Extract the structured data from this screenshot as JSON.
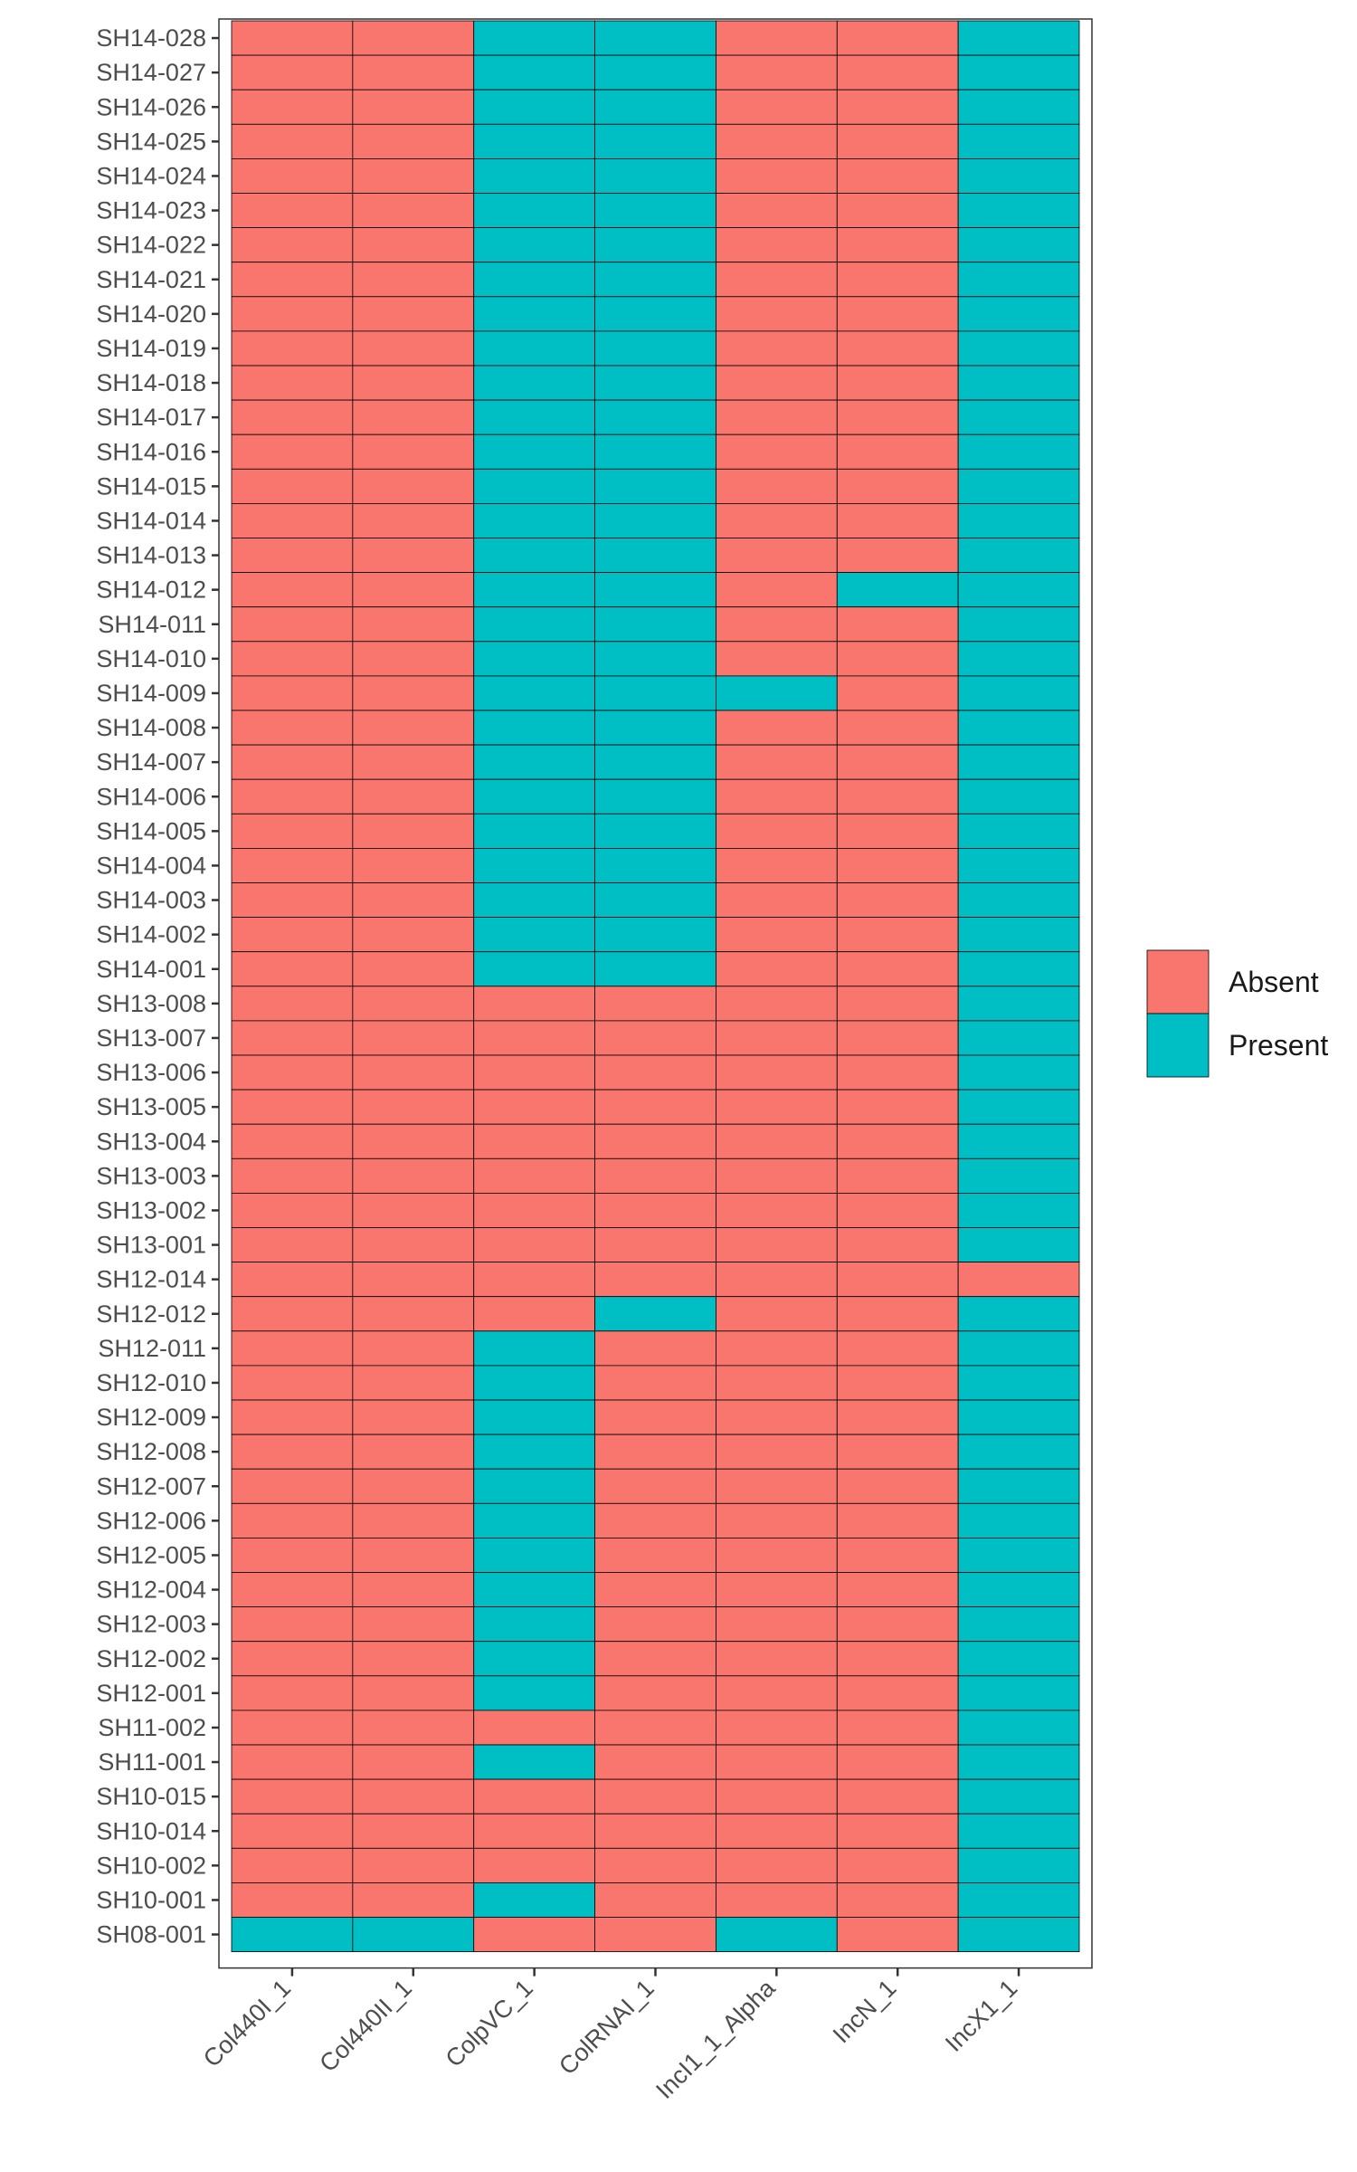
{
  "chart_data": {
    "type": "heatmap",
    "title": "",
    "xlabel": "",
    "ylabel": "",
    "x": [
      "Col440I_1",
      "Col440II_1",
      "ColpVC_1",
      "ColRNAI_1",
      "IncI1_1_Alpha",
      "IncN_1",
      "IncX1_1"
    ],
    "y": [
      "SH14-028",
      "SH14-027",
      "SH14-026",
      "SH14-025",
      "SH14-024",
      "SH14-023",
      "SH14-022",
      "SH14-021",
      "SH14-020",
      "SH14-019",
      "SH14-018",
      "SH14-017",
      "SH14-016",
      "SH14-015",
      "SH14-014",
      "SH14-013",
      "SH14-012",
      "SH14-011",
      "SH14-010",
      "SH14-009",
      "SH14-008",
      "SH14-007",
      "SH14-006",
      "SH14-005",
      "SH14-004",
      "SH14-003",
      "SH14-002",
      "SH14-001",
      "SH13-008",
      "SH13-007",
      "SH13-006",
      "SH13-005",
      "SH13-004",
      "SH13-003",
      "SH13-002",
      "SH13-001",
      "SH12-014",
      "SH12-012",
      "SH12-011",
      "SH12-010",
      "SH12-009",
      "SH12-008",
      "SH12-007",
      "SH12-006",
      "SH12-005",
      "SH12-004",
      "SH12-003",
      "SH12-002",
      "SH12-001",
      "SH11-002",
      "SH11-001",
      "SH10-015",
      "SH10-014",
      "SH10-002",
      "SH10-001",
      "SH08-001"
    ],
    "values": [
      [
        0,
        0,
        1,
        1,
        0,
        0,
        1
      ],
      [
        0,
        0,
        1,
        1,
        0,
        0,
        1
      ],
      [
        0,
        0,
        1,
        1,
        0,
        0,
        1
      ],
      [
        0,
        0,
        1,
        1,
        0,
        0,
        1
      ],
      [
        0,
        0,
        1,
        1,
        0,
        0,
        1
      ],
      [
        0,
        0,
        1,
        1,
        0,
        0,
        1
      ],
      [
        0,
        0,
        1,
        1,
        0,
        0,
        1
      ],
      [
        0,
        0,
        1,
        1,
        0,
        0,
        1
      ],
      [
        0,
        0,
        1,
        1,
        0,
        0,
        1
      ],
      [
        0,
        0,
        1,
        1,
        0,
        0,
        1
      ],
      [
        0,
        0,
        1,
        1,
        0,
        0,
        1
      ],
      [
        0,
        0,
        1,
        1,
        0,
        0,
        1
      ],
      [
        0,
        0,
        1,
        1,
        0,
        0,
        1
      ],
      [
        0,
        0,
        1,
        1,
        0,
        0,
        1
      ],
      [
        0,
        0,
        1,
        1,
        0,
        0,
        1
      ],
      [
        0,
        0,
        1,
        1,
        0,
        0,
        1
      ],
      [
        0,
        0,
        1,
        1,
        0,
        1,
        1
      ],
      [
        0,
        0,
        1,
        1,
        0,
        0,
        1
      ],
      [
        0,
        0,
        1,
        1,
        0,
        0,
        1
      ],
      [
        0,
        0,
        1,
        1,
        1,
        0,
        1
      ],
      [
        0,
        0,
        1,
        1,
        0,
        0,
        1
      ],
      [
        0,
        0,
        1,
        1,
        0,
        0,
        1
      ],
      [
        0,
        0,
        1,
        1,
        0,
        0,
        1
      ],
      [
        0,
        0,
        1,
        1,
        0,
        0,
        1
      ],
      [
        0,
        0,
        1,
        1,
        0,
        0,
        1
      ],
      [
        0,
        0,
        1,
        1,
        0,
        0,
        1
      ],
      [
        0,
        0,
        1,
        1,
        0,
        0,
        1
      ],
      [
        0,
        0,
        1,
        1,
        0,
        0,
        1
      ],
      [
        0,
        0,
        0,
        0,
        0,
        0,
        1
      ],
      [
        0,
        0,
        0,
        0,
        0,
        0,
        1
      ],
      [
        0,
        0,
        0,
        0,
        0,
        0,
        1
      ],
      [
        0,
        0,
        0,
        0,
        0,
        0,
        1
      ],
      [
        0,
        0,
        0,
        0,
        0,
        0,
        1
      ],
      [
        0,
        0,
        0,
        0,
        0,
        0,
        1
      ],
      [
        0,
        0,
        0,
        0,
        0,
        0,
        1
      ],
      [
        0,
        0,
        0,
        0,
        0,
        0,
        1
      ],
      [
        0,
        0,
        0,
        0,
        0,
        0,
        0
      ],
      [
        0,
        0,
        0,
        1,
        0,
        0,
        1
      ],
      [
        0,
        0,
        1,
        0,
        0,
        0,
        1
      ],
      [
        0,
        0,
        1,
        0,
        0,
        0,
        1
      ],
      [
        0,
        0,
        1,
        0,
        0,
        0,
        1
      ],
      [
        0,
        0,
        1,
        0,
        0,
        0,
        1
      ],
      [
        0,
        0,
        1,
        0,
        0,
        0,
        1
      ],
      [
        0,
        0,
        1,
        0,
        0,
        0,
        1
      ],
      [
        0,
        0,
        1,
        0,
        0,
        0,
        1
      ],
      [
        0,
        0,
        1,
        0,
        0,
        0,
        1
      ],
      [
        0,
        0,
        1,
        0,
        0,
        0,
        1
      ],
      [
        0,
        0,
        1,
        0,
        0,
        0,
        1
      ],
      [
        0,
        0,
        1,
        0,
        0,
        0,
        1
      ],
      [
        0,
        0,
        0,
        0,
        0,
        0,
        1
      ],
      [
        0,
        0,
        1,
        0,
        0,
        0,
        1
      ],
      [
        0,
        0,
        0,
        0,
        0,
        0,
        1
      ],
      [
        0,
        0,
        0,
        0,
        0,
        0,
        1
      ],
      [
        0,
        0,
        0,
        0,
        0,
        0,
        1
      ],
      [
        0,
        0,
        1,
        0,
        0,
        0,
        1
      ],
      [
        1,
        1,
        0,
        0,
        1,
        0,
        1
      ]
    ],
    "legend": {
      "position": "right",
      "entries": [
        {
          "value": 0,
          "label": "Absent",
          "color": "#F8766D"
        },
        {
          "value": 1,
          "label": "Present",
          "color": "#00BFC4"
        }
      ]
    },
    "grid": false
  }
}
